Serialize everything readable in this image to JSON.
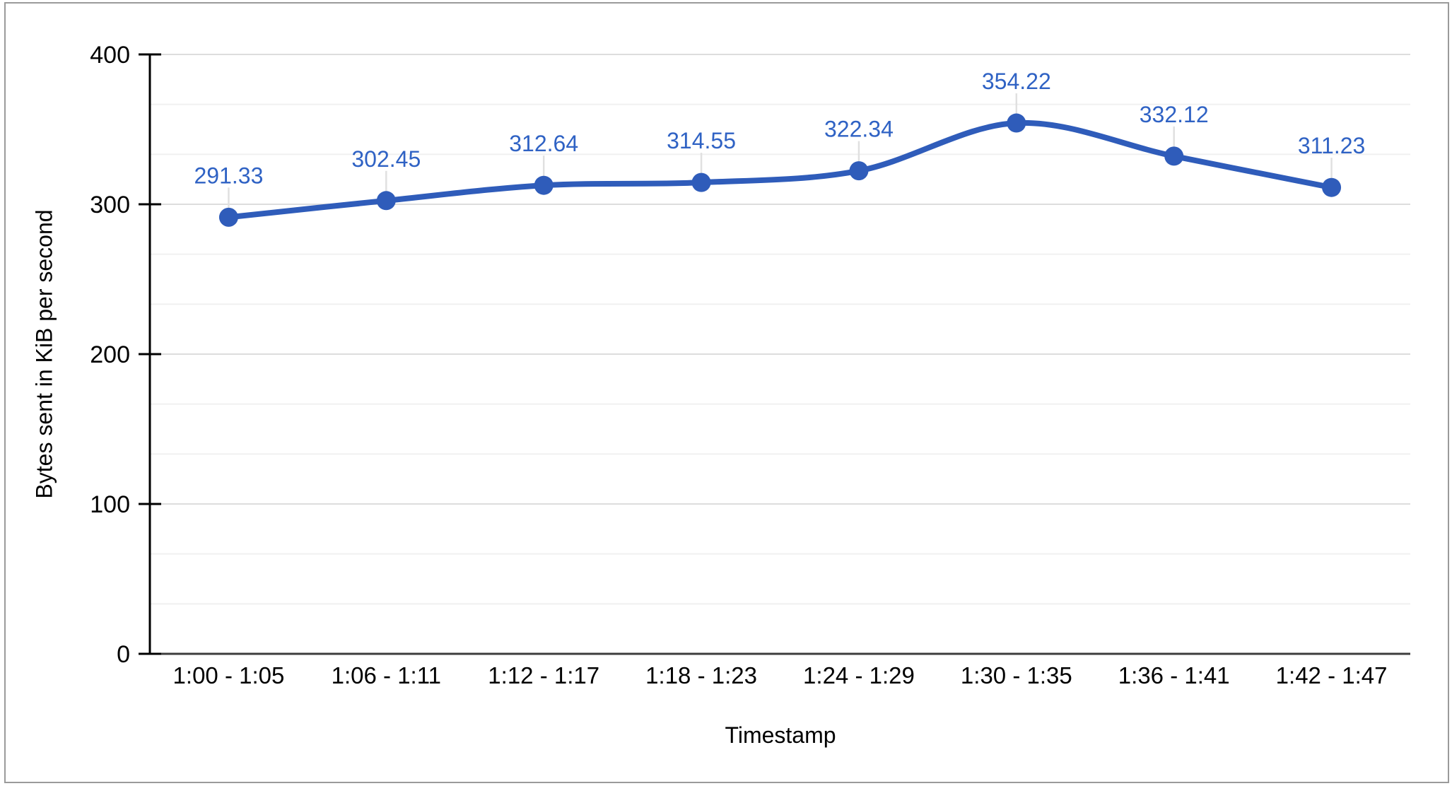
{
  "frame": {
    "border_color": "#9b9b9b",
    "background": "#ffffff"
  },
  "chart_data": {
    "type": "line",
    "categories": [
      "1:00 - 1:05",
      "1:06 - 1:11",
      "1:12 - 1:17",
      "1:18 - 1:23",
      "1:24 - 1:29",
      "1:30 - 1:35",
      "1:36 - 1:41",
      "1:42 - 1:47"
    ],
    "values": [
      291.33,
      302.45,
      312.64,
      314.55,
      322.34,
      354.22,
      332.12,
      311.23
    ],
    "data_labels": [
      "291.33",
      "302.45",
      "312.64",
      "314.55",
      "322.34",
      "354.22",
      "332.12",
      "311.23"
    ],
    "xlabel": "Timestamp",
    "ylabel": "Bytes sent in KiB per second",
    "ylim": [
      0,
      400
    ],
    "yticks": [
      0,
      100,
      200,
      300,
      400
    ],
    "ytick_labels": [
      "0",
      "100",
      "200",
      "300",
      "400"
    ],
    "minor_gridlines_per_major": 2,
    "grid": "horizontal",
    "legend": "none",
    "line_smooth": true,
    "show_point_markers": true,
    "show_data_labels": true,
    "colors": {
      "series": "#2f5cba",
      "data_label": "#2f62c4",
      "grid_major": "#dddddd",
      "grid_minor": "#f0f0f0",
      "axis_line": "#000000",
      "baseline": "#3d3d3d",
      "leader_line": "#e0e0e0",
      "tick_text": "#000000"
    }
  }
}
